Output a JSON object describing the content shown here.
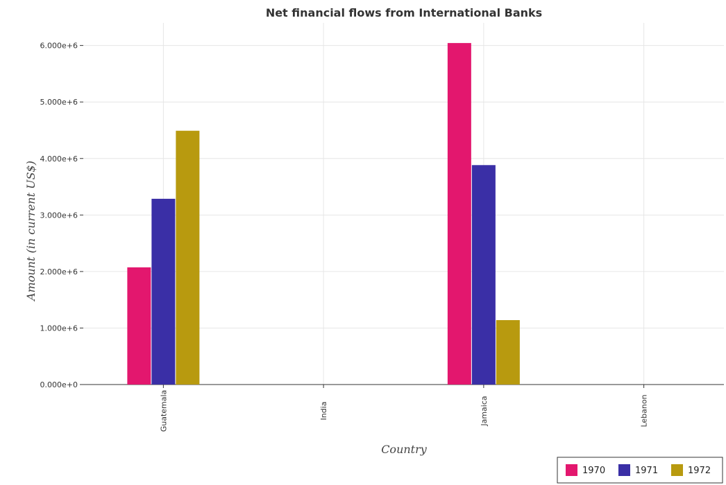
{
  "chart_data": {
    "type": "bar",
    "title": "Net financial flows from International Banks",
    "xlabel": "Country",
    "ylabel": "Amount (in current US$)",
    "categories": [
      "Guatemala",
      "India",
      "Jamaica",
      "Lebanon"
    ],
    "series": [
      {
        "name": "1970",
        "color": "#e3176e",
        "values": [
          2074000,
          0,
          6043000,
          0
        ]
      },
      {
        "name": "1971",
        "color": "#3a2fa6",
        "values": [
          3287000,
          0,
          3883000,
          0
        ]
      },
      {
        "name": "1972",
        "color": "#b89a0f",
        "values": [
          4491000,
          0,
          1140000,
          0
        ]
      }
    ],
    "ylim": [
      0,
      6400000
    ],
    "yticks": [
      0,
      1000000,
      2000000,
      3000000,
      4000000,
      5000000,
      6000000
    ],
    "ytick_labels": [
      "0.000e+0",
      "1.000e+6",
      "2.000e+6",
      "3.000e+6",
      "4.000e+6",
      "5.000e+6",
      "6.000e+6"
    ],
    "grid": true,
    "legend_position": "bottom-right"
  }
}
